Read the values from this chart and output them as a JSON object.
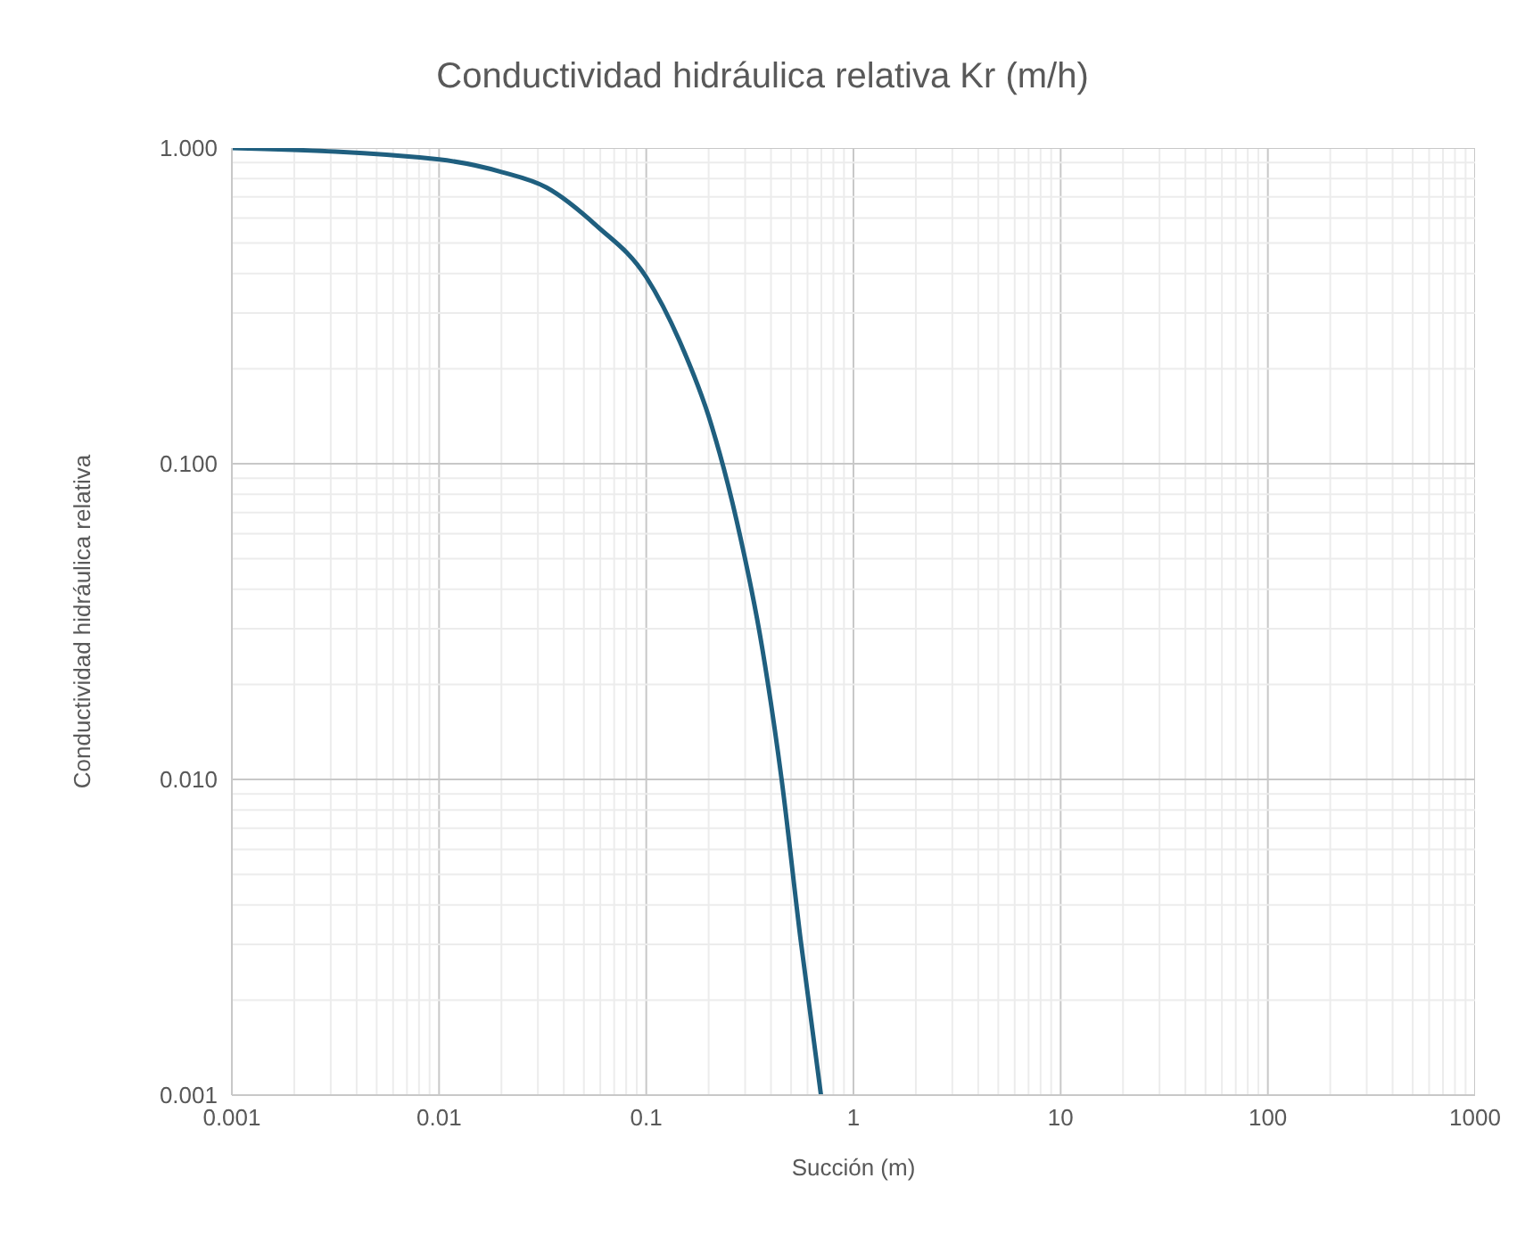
{
  "chart_data": {
    "type": "line",
    "title": "Conductividad hidráulica relativa Kr (m/h)",
    "xlabel": "Succión (m)",
    "ylabel": "Conductividad hidráulica relativa",
    "log": "xy",
    "grid": true,
    "marker": "none",
    "line_style": "solid",
    "x": [
      0.001,
      0.01,
      0.02,
      0.033,
      0.058,
      0.1,
      0.145,
      0.206,
      0.273,
      0.363,
      0.45,
      0.556,
      0.697
    ],
    "series": [
      {
        "color": "#1f5f7f",
        "values": [
          1,
          0.92,
          0.84,
          0.75,
          0.565,
          0.39,
          0.244,
          0.133,
          0.066,
          0.026,
          0.01,
          0.0031,
          0.001
        ]
      }
    ],
    "xlim": [
      0.001,
      1000
    ],
    "xticks": [
      0.001,
      {
        "value": 0.002,
        "label": null
      },
      {
        "value": 0.003,
        "label": null
      },
      {
        "value": 0.004,
        "label": null
      },
      {
        "value": 0.005,
        "label": null
      },
      {
        "value": 0.006,
        "label": null
      },
      {
        "value": 0.007,
        "label": null
      },
      {
        "value": 0.008,
        "label": null
      },
      {
        "value": 0.009,
        "label": null
      },
      0.01,
      {
        "value": 0.02,
        "label": null
      },
      {
        "value": 0.03,
        "label": null
      },
      {
        "value": 0.04,
        "label": null
      },
      {
        "value": 0.05,
        "label": null
      },
      {
        "value": 0.06,
        "label": null
      },
      {
        "value": 0.07,
        "label": null
      },
      {
        "value": 0.08,
        "label": null
      },
      {
        "value": 0.09,
        "label": null
      },
      0.1,
      {
        "value": 0.2,
        "label": null
      },
      {
        "value": 0.3,
        "label": null
      },
      {
        "value": 0.4,
        "label": null
      },
      {
        "value": 0.5,
        "label": null
      },
      {
        "value": 0.6,
        "label": null
      },
      {
        "value": 0.7,
        "label": null
      },
      {
        "value": 0.8,
        "label": null
      },
      {
        "value": 0.9,
        "label": null
      },
      1,
      {
        "value": 2,
        "label": null
      },
      {
        "value": 3,
        "label": null
      },
      {
        "value": 4,
        "label": null
      },
      {
        "value": 5,
        "label": null
      },
      {
        "value": 6,
        "label": null
      },
      {
        "value": 7,
        "label": null
      },
      {
        "value": 8,
        "label": null
      },
      {
        "value": 9,
        "label": null
      },
      10,
      {
        "value": 20,
        "label": null
      },
      {
        "value": 30,
        "label": null
      },
      {
        "value": 40,
        "label": null
      },
      {
        "value": 50,
        "label": null
      },
      {
        "value": 60,
        "label": null
      },
      {
        "value": 70,
        "label": null
      },
      {
        "value": 80,
        "label": null
      },
      {
        "value": 90,
        "label": null
      },
      100,
      {
        "value": 200,
        "label": null
      },
      {
        "value": 300,
        "label": null
      },
      {
        "value": 400,
        "label": null
      },
      {
        "value": 500,
        "label": null
      },
      {
        "value": 600,
        "label": null
      },
      {
        "value": 700,
        "label": null
      },
      {
        "value": 800,
        "label": null
      },
      {
        "value": 900,
        "label": null
      },
      1000
    ],
    "ylim": [
      0.001,
      1
    ],
    "yticks": [
      {
        "value": 0.001,
        "label": "0.001"
      },
      {
        "value": 0.002,
        "label": null
      },
      {
        "value": 0.003,
        "label": null
      },
      {
        "value": 0.004,
        "label": null
      },
      {
        "value": 0.005,
        "label": null
      },
      {
        "value": 0.006,
        "label": null
      },
      {
        "value": 0.007,
        "label": null
      },
      {
        "value": 0.008,
        "label": null
      },
      {
        "value": 0.009,
        "label": null
      },
      {
        "value": 0.01,
        "label": "0.010"
      },
      {
        "value": 0.02,
        "label": null
      },
      {
        "value": 0.03,
        "label": null
      },
      {
        "value": 0.04,
        "label": null
      },
      {
        "value": 0.05,
        "label": null
      },
      {
        "value": 0.06,
        "label": null
      },
      {
        "value": 0.07,
        "label": null
      },
      {
        "value": 0.08,
        "label": null
      },
      {
        "value": 0.09,
        "label": null
      },
      {
        "value": 0.1,
        "label": "0.100"
      },
      {
        "value": 0.2,
        "label": null
      },
      {
        "value": 0.3,
        "label": null
      },
      {
        "value": 0.4,
        "label": null
      },
      {
        "value": 0.5,
        "label": null
      },
      {
        "value": 0.6,
        "label": null
      },
      {
        "value": 0.7,
        "label": null
      },
      {
        "value": 0.8,
        "label": null
      },
      {
        "value": 0.9,
        "label": null
      },
      {
        "value": 1,
        "label": "1.000"
      }
    ]
  }
}
